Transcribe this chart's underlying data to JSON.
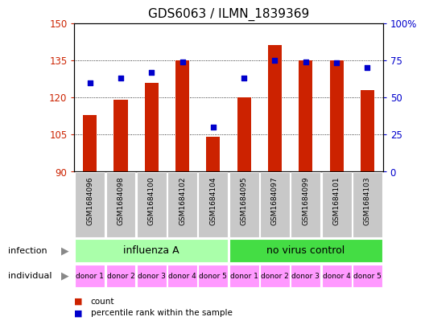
{
  "title": "GDS6063 / ILMN_1839369",
  "samples": [
    "GSM1684096",
    "GSM1684098",
    "GSM1684100",
    "GSM1684102",
    "GSM1684104",
    "GSM1684095",
    "GSM1684097",
    "GSM1684099",
    "GSM1684101",
    "GSM1684103"
  ],
  "counts": [
    113,
    119,
    126,
    135,
    104,
    120,
    141,
    135,
    135,
    123
  ],
  "percentiles": [
    60,
    63,
    67,
    74,
    30,
    63,
    75,
    74,
    73,
    70
  ],
  "infection_groups": [
    {
      "label": "influenza A",
      "start": 0,
      "end": 4,
      "color": "#AAFFAA"
    },
    {
      "label": "no virus control",
      "start": 5,
      "end": 9,
      "color": "#44DD44"
    }
  ],
  "individual_labels": [
    "donor 1",
    "donor 2",
    "donor 3",
    "donor 4",
    "donor 5",
    "donor 1",
    "donor 2",
    "donor 3",
    "donor 4",
    "donor 5"
  ],
  "individual_color": "#FF99FF",
  "ylim_left": [
    90,
    150
  ],
  "ylim_right": [
    0,
    100
  ],
  "yticks_left": [
    90,
    105,
    120,
    135,
    150
  ],
  "yticks_right": [
    0,
    25,
    50,
    75,
    100
  ],
  "bar_color": "#CC2200",
  "dot_color": "#0000CC",
  "bar_bottom": 90,
  "left_tick_color": "#CC2200",
  "right_tick_color": "#0000CC",
  "title_fontsize": 11,
  "tick_fontsize": 8.5,
  "sample_fontsize": 6.5,
  "legend_count_label": "count",
  "legend_pct_label": "percentile rank within the sample",
  "sample_bg": "#C8C8C8",
  "gridline_vals": [
    105,
    120,
    135
  ]
}
